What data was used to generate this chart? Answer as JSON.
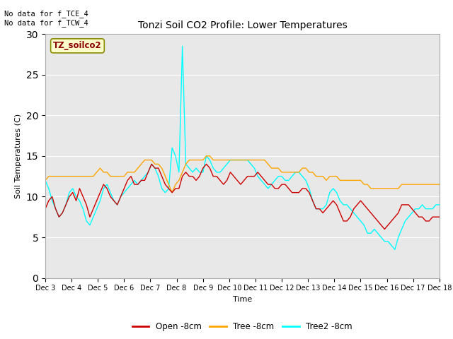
{
  "title": "Tonzi Soil CO2 Profile: Lower Temperatures",
  "xlabel": "Time",
  "ylabel": "Soil Temperatures (C)",
  "top_note": "No data for f_TCE_4\nNo data for f_TCW_4",
  "box_label": "TZ_soilco2",
  "ylim": [
    0,
    30
  ],
  "yticks": [
    0,
    5,
    10,
    15,
    20,
    25,
    30
  ],
  "x_labels": [
    "Dec 3",
    "Dec 4",
    "Dec 5",
    "Dec 6",
    "Dec 7",
    "Dec 8",
    "Dec 9",
    "Dec 10",
    "Dec 11",
    "Dec 12",
    "Dec 13",
    "Dec 14",
    "Dec 15",
    "Dec 16",
    "Dec 17",
    "Dec 18"
  ],
  "bg_color": "#e8e8e8",
  "fig_bg_color": "#ffffff",
  "open_color": "#cc0000",
  "tree_color": "#ffa500",
  "tree2_color": "#00ffff",
  "open_8cm": [
    8.5,
    9.5,
    10.0,
    8.5,
    7.5,
    8.0,
    9.0,
    10.0,
    10.5,
    9.5,
    11.0,
    10.0,
    9.0,
    7.5,
    8.5,
    9.5,
    10.5,
    11.5,
    11.0,
    10.0,
    9.5,
    9.0,
    10.0,
    11.0,
    12.0,
    12.5,
    11.5,
    11.5,
    12.0,
    12.0,
    13.0,
    14.0,
    13.5,
    13.5,
    12.5,
    11.5,
    11.0,
    10.5,
    11.0,
    11.0,
    12.5,
    13.0,
    12.5,
    12.5,
    12.0,
    12.5,
    13.5,
    14.0,
    13.5,
    12.5,
    12.5,
    12.0,
    11.5,
    12.0,
    13.0,
    12.5,
    12.0,
    11.5,
    12.0,
    12.5,
    12.5,
    12.5,
    13.0,
    12.5,
    12.0,
    11.5,
    11.5,
    11.0,
    11.0,
    11.5,
    11.5,
    11.0,
    10.5,
    10.5,
    10.5,
    11.0,
    11.0,
    10.5,
    9.5,
    8.5,
    8.5,
    8.0,
    8.5,
    9.0,
    9.5,
    9.0,
    8.0,
    7.0,
    7.0,
    7.5,
    8.5,
    9.0,
    9.5,
    9.0,
    8.5,
    8.0,
    7.5,
    7.0,
    6.5,
    6.0,
    6.5,
    7.0,
    7.5,
    8.0,
    9.0,
    9.0,
    9.0,
    8.5,
    8.0,
    7.5,
    7.5,
    7.0,
    7.0,
    7.5,
    7.5,
    7.5
  ],
  "tree_8cm": [
    12.0,
    12.5,
    12.5,
    12.5,
    12.5,
    12.5,
    12.5,
    12.5,
    12.5,
    12.5,
    12.5,
    12.5,
    12.5,
    12.5,
    12.5,
    13.0,
    13.5,
    13.0,
    13.0,
    12.5,
    12.5,
    12.5,
    12.5,
    12.5,
    13.0,
    13.0,
    13.0,
    13.5,
    14.0,
    14.5,
    14.5,
    14.5,
    14.0,
    14.0,
    13.5,
    12.5,
    11.5,
    10.5,
    11.5,
    12.0,
    13.0,
    14.0,
    14.5,
    14.5,
    14.5,
    14.5,
    14.5,
    15.0,
    15.0,
    14.5,
    14.5,
    14.5,
    14.5,
    14.5,
    14.5,
    14.5,
    14.5,
    14.5,
    14.5,
    14.5,
    14.5,
    14.5,
    14.5,
    14.5,
    14.5,
    14.0,
    13.5,
    13.5,
    13.5,
    13.0,
    13.0,
    13.0,
    13.0,
    13.0,
    13.0,
    13.5,
    13.5,
    13.0,
    13.0,
    12.5,
    12.5,
    12.5,
    12.0,
    12.5,
    12.5,
    12.5,
    12.0,
    12.0,
    12.0,
    12.0,
    12.0,
    12.0,
    12.0,
    11.5,
    11.5,
    11.0,
    11.0,
    11.0,
    11.0,
    11.0,
    11.0,
    11.0,
    11.0,
    11.0,
    11.5,
    11.5,
    11.5,
    11.5,
    11.5,
    11.5,
    11.5,
    11.5,
    11.5,
    11.5,
    11.5,
    11.5
  ],
  "tree2_8cm": [
    12.0,
    11.0,
    9.5,
    8.5,
    7.5,
    8.0,
    9.0,
    10.5,
    11.0,
    10.0,
    9.5,
    8.5,
    7.0,
    6.5,
    7.5,
    8.5,
    9.5,
    11.0,
    11.5,
    10.5,
    9.5,
    9.0,
    10.0,
    10.5,
    11.0,
    11.5,
    12.0,
    11.5,
    12.0,
    12.5,
    13.0,
    14.0,
    13.5,
    12.5,
    11.0,
    10.5,
    11.0,
    16.0,
    15.0,
    13.0,
    28.5,
    14.0,
    13.5,
    13.0,
    13.5,
    13.0,
    13.0,
    15.0,
    14.5,
    13.5,
    13.0,
    13.0,
    13.5,
    14.0,
    14.5,
    14.5,
    14.5,
    14.5,
    14.5,
    14.5,
    14.0,
    13.5,
    12.5,
    12.0,
    11.5,
    11.0,
    11.5,
    12.0,
    12.5,
    12.5,
    12.0,
    12.0,
    12.5,
    13.0,
    13.0,
    12.5,
    12.0,
    11.0,
    9.5,
    8.5,
    8.5,
    8.5,
    9.0,
    10.5,
    11.0,
    10.5,
    9.5,
    9.0,
    9.0,
    8.5,
    8.0,
    7.5,
    7.0,
    6.5,
    5.5,
    5.5,
    6.0,
    5.5,
    5.0,
    4.5,
    4.5,
    4.0,
    3.5,
    5.0,
    6.0,
    7.0,
    7.5,
    8.0,
    8.5,
    8.5,
    9.0,
    8.5,
    8.5,
    8.5,
    9.0,
    9.0
  ]
}
